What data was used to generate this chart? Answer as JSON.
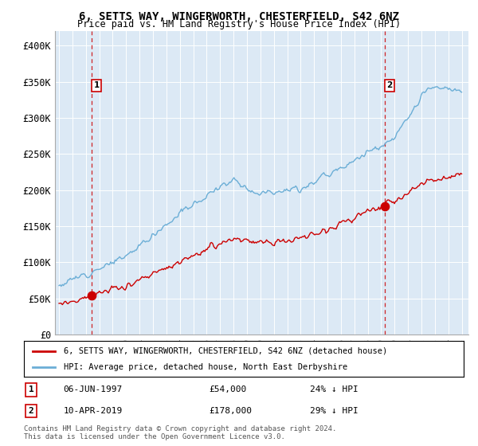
{
  "title": "6, SETTS WAY, WINGERWORTH, CHESTERFIELD, S42 6NZ",
  "subtitle": "Price paid vs. HM Land Registry's House Price Index (HPI)",
  "plot_bg_color": "#dce9f5",
  "ylim": [
    0,
    420000
  ],
  "yticks": [
    0,
    50000,
    100000,
    150000,
    200000,
    250000,
    300000,
    350000,
    400000
  ],
  "ytick_labels": [
    "£0",
    "£50K",
    "£100K",
    "£150K",
    "£200K",
    "£250K",
    "£300K",
    "£350K",
    "£400K"
  ],
  "hpi_color": "#6baed6",
  "price_color": "#cc0000",
  "marker1_date": 1997.43,
  "marker1_price": 54000,
  "marker1_label": "06-JUN-1997",
  "marker1_amount": "£54,000",
  "marker1_pct": "24% ↓ HPI",
  "marker2_date": 2019.27,
  "marker2_price": 178000,
  "marker2_label": "10-APR-2019",
  "marker2_amount": "£178,000",
  "marker2_pct": "29% ↓ HPI",
  "legend_line1": "6, SETTS WAY, WINGERWORTH, CHESTERFIELD, S42 6NZ (detached house)",
  "legend_line2": "HPI: Average price, detached house, North East Derbyshire",
  "footer1": "Contains HM Land Registry data © Crown copyright and database right 2024.",
  "footer2": "This data is licensed under the Open Government Licence v3.0."
}
